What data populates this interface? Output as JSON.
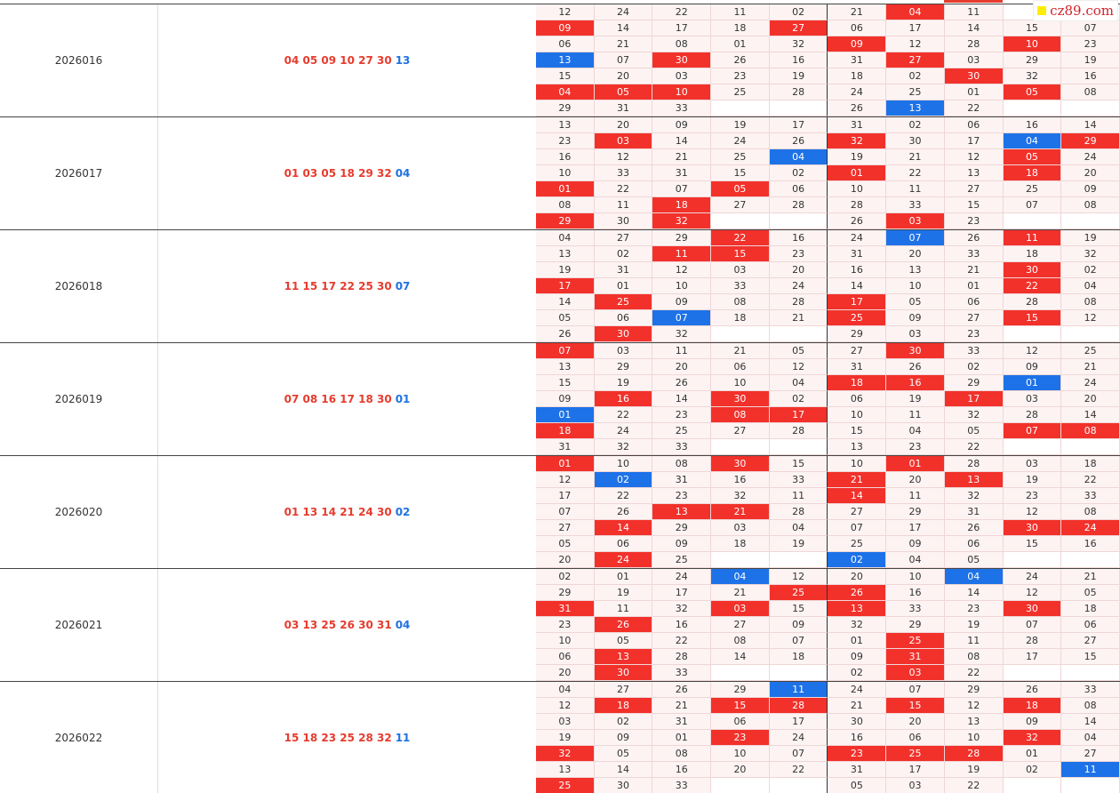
{
  "logo": {
    "text": "cz89.com",
    "square_color": "#ffec00",
    "text_color": "#d2232a"
  },
  "colors": {
    "hit_red": "#f2312b",
    "hit_blue": "#1d72e8",
    "cell_bg": "#fdf3f3"
  },
  "periods": [
    {
      "issue": "2026016",
      "reds": "04 05 09 10 27 30",
      "blue": "13",
      "rows": [
        [
          "12",
          "24",
          "22",
          "11",
          "02",
          "21",
          "04r",
          "11",
          "",
          ""
        ],
        [
          "09r",
          "14",
          "17",
          "18",
          "27r",
          "06",
          "17",
          "14",
          "15",
          "07"
        ],
        [
          "06",
          "21",
          "08",
          "01",
          "32",
          "09r",
          "12",
          "28",
          "10r",
          "23"
        ],
        [
          "13b",
          "07",
          "30r",
          "26",
          "16",
          "31",
          "27r",
          "03",
          "29",
          "19"
        ],
        [
          "15",
          "20",
          "03",
          "23",
          "19",
          "18",
          "02",
          "30r",
          "32",
          "16"
        ],
        [
          "04r",
          "05r",
          "10r",
          "25",
          "28",
          "24",
          "25",
          "01",
          "05r",
          "08"
        ],
        [
          "29",
          "31",
          "33",
          "",
          "",
          "26",
          "13b",
          "22",
          "",
          ""
        ]
      ]
    },
    {
      "issue": "2026017",
      "reds": "01 03 05 18 29 32",
      "blue": "04",
      "rows": [
        [
          "13",
          "20",
          "09",
          "19",
          "17",
          "31",
          "02",
          "06",
          "16",
          "14"
        ],
        [
          "23",
          "03r",
          "14",
          "24",
          "26",
          "32r",
          "30",
          "17",
          "04b",
          "29r"
        ],
        [
          "16",
          "12",
          "21",
          "25",
          "04b",
          "19",
          "21",
          "12",
          "05r",
          "24"
        ],
        [
          "10",
          "33",
          "31",
          "15",
          "02",
          "01r",
          "22",
          "13",
          "18r",
          "20"
        ],
        [
          "01r",
          "22",
          "07",
          "05r",
          "06",
          "10",
          "11",
          "27",
          "25",
          "09"
        ],
        [
          "08",
          "11",
          "18r",
          "27",
          "28",
          "28",
          "33",
          "15",
          "07",
          "08"
        ],
        [
          "29r",
          "30",
          "32r",
          "",
          "",
          "26",
          "03r",
          "23",
          "",
          ""
        ]
      ]
    },
    {
      "issue": "2026018",
      "reds": "11 15 17 22 25 30",
      "blue": "07",
      "rows": [
        [
          "04",
          "27",
          "29",
          "22r",
          "16",
          "24",
          "07b",
          "26",
          "11r",
          "19"
        ],
        [
          "13",
          "02",
          "11r",
          "15r",
          "23",
          "31",
          "20",
          "33",
          "18",
          "32"
        ],
        [
          "19",
          "31",
          "12",
          "03",
          "20",
          "16",
          "13",
          "21",
          "30r",
          "02"
        ],
        [
          "17r",
          "01",
          "10",
          "33",
          "24",
          "14",
          "10",
          "01",
          "22r",
          "04"
        ],
        [
          "14",
          "25r",
          "09",
          "08",
          "28",
          "17r",
          "05",
          "06",
          "28",
          "08"
        ],
        [
          "05",
          "06",
          "07b",
          "18",
          "21",
          "25r",
          "09",
          "27",
          "15r",
          "12"
        ],
        [
          "26",
          "30r",
          "32",
          "",
          "",
          "29",
          "03",
          "23",
          "",
          ""
        ]
      ]
    },
    {
      "issue": "2026019",
      "reds": "07 08 16 17 18 30",
      "blue": "01",
      "rows": [
        [
          "07r",
          "03",
          "11",
          "21",
          "05",
          "27",
          "30r",
          "33",
          "12",
          "25"
        ],
        [
          "13",
          "29",
          "20",
          "06",
          "12",
          "31",
          "26",
          "02",
          "09",
          "21"
        ],
        [
          "15",
          "19",
          "26",
          "10",
          "04",
          "18r",
          "16r",
          "29",
          "01b",
          "24"
        ],
        [
          "09",
          "16r",
          "14",
          "30r",
          "02",
          "06",
          "19",
          "17r",
          "03",
          "20"
        ],
        [
          "01b",
          "22",
          "23",
          "08r",
          "17r",
          "10",
          "11",
          "32",
          "28",
          "14"
        ],
        [
          "18r",
          "24",
          "25",
          "27",
          "28",
          "15",
          "04",
          "05",
          "07r",
          "08r"
        ],
        [
          "31",
          "32",
          "33",
          "",
          "",
          "13",
          "23",
          "22",
          "",
          ""
        ]
      ]
    },
    {
      "issue": "2026020",
      "reds": "01 13 14 21 24 30",
      "blue": "02",
      "rows": [
        [
          "01r",
          "10",
          "08",
          "30r",
          "15",
          "10",
          "01r",
          "28",
          "03",
          "18"
        ],
        [
          "12",
          "02b",
          "31",
          "16",
          "33",
          "21r",
          "20",
          "13r",
          "19",
          "22"
        ],
        [
          "17",
          "22",
          "23",
          "32",
          "11",
          "14r",
          "11",
          "32",
          "23",
          "33"
        ],
        [
          "07",
          "26",
          "13r",
          "21r",
          "28",
          "27",
          "29",
          "31",
          "12",
          "08"
        ],
        [
          "27",
          "14r",
          "29",
          "03",
          "04",
          "07",
          "17",
          "26",
          "30r",
          "24r"
        ],
        [
          "05",
          "06",
          "09",
          "18",
          "19",
          "25",
          "09",
          "06",
          "15",
          "16"
        ],
        [
          "20",
          "24r",
          "25",
          "",
          "",
          "02b",
          "04",
          "05",
          "",
          ""
        ]
      ]
    },
    {
      "issue": "2026021",
      "reds": "03 13 25 26 30 31",
      "blue": "04",
      "rows": [
        [
          "02",
          "01",
          "24",
          "04b",
          "12",
          "20",
          "10",
          "04b",
          "24",
          "21"
        ],
        [
          "29",
          "19",
          "17",
          "21",
          "25r",
          "26r",
          "16",
          "14",
          "12",
          "05"
        ],
        [
          "31r",
          "11",
          "32",
          "03r",
          "15",
          "13r",
          "33",
          "23",
          "30r",
          "18"
        ],
        [
          "23",
          "26r",
          "16",
          "27",
          "09",
          "32",
          "29",
          "19",
          "07",
          "06"
        ],
        [
          "10",
          "05",
          "22",
          "08",
          "07",
          "01",
          "25r",
          "11",
          "28",
          "27"
        ],
        [
          "06",
          "13r",
          "28",
          "14",
          "18",
          "09",
          "31r",
          "08",
          "17",
          "15"
        ],
        [
          "20",
          "30r",
          "33",
          "",
          "",
          "02",
          "03r",
          "22",
          "",
          ""
        ]
      ]
    },
    {
      "issue": "2026022",
      "reds": "15 18 23 25 28 32",
      "blue": "11",
      "rows": [
        [
          "04",
          "27",
          "26",
          "29",
          "11b",
          "24",
          "07",
          "29",
          "26",
          "33"
        ],
        [
          "12",
          "18r",
          "21",
          "15r",
          "28r",
          "21",
          "15r",
          "12",
          "18r",
          "08"
        ],
        [
          "03",
          "02",
          "31",
          "06",
          "17",
          "30",
          "20",
          "13",
          "09",
          "14"
        ],
        [
          "19",
          "09",
          "01",
          "23r",
          "24",
          "16",
          "06",
          "10",
          "32r",
          "04"
        ],
        [
          "32r",
          "05",
          "08",
          "10",
          "07",
          "23r",
          "25r",
          "28r",
          "01",
          "27"
        ],
        [
          "13",
          "14",
          "16",
          "20",
          "22",
          "31",
          "17",
          "19",
          "02",
          "11b"
        ],
        [
          "25r",
          "30",
          "33",
          "",
          "",
          "05",
          "03",
          "22",
          "",
          ""
        ]
      ]
    }
  ]
}
